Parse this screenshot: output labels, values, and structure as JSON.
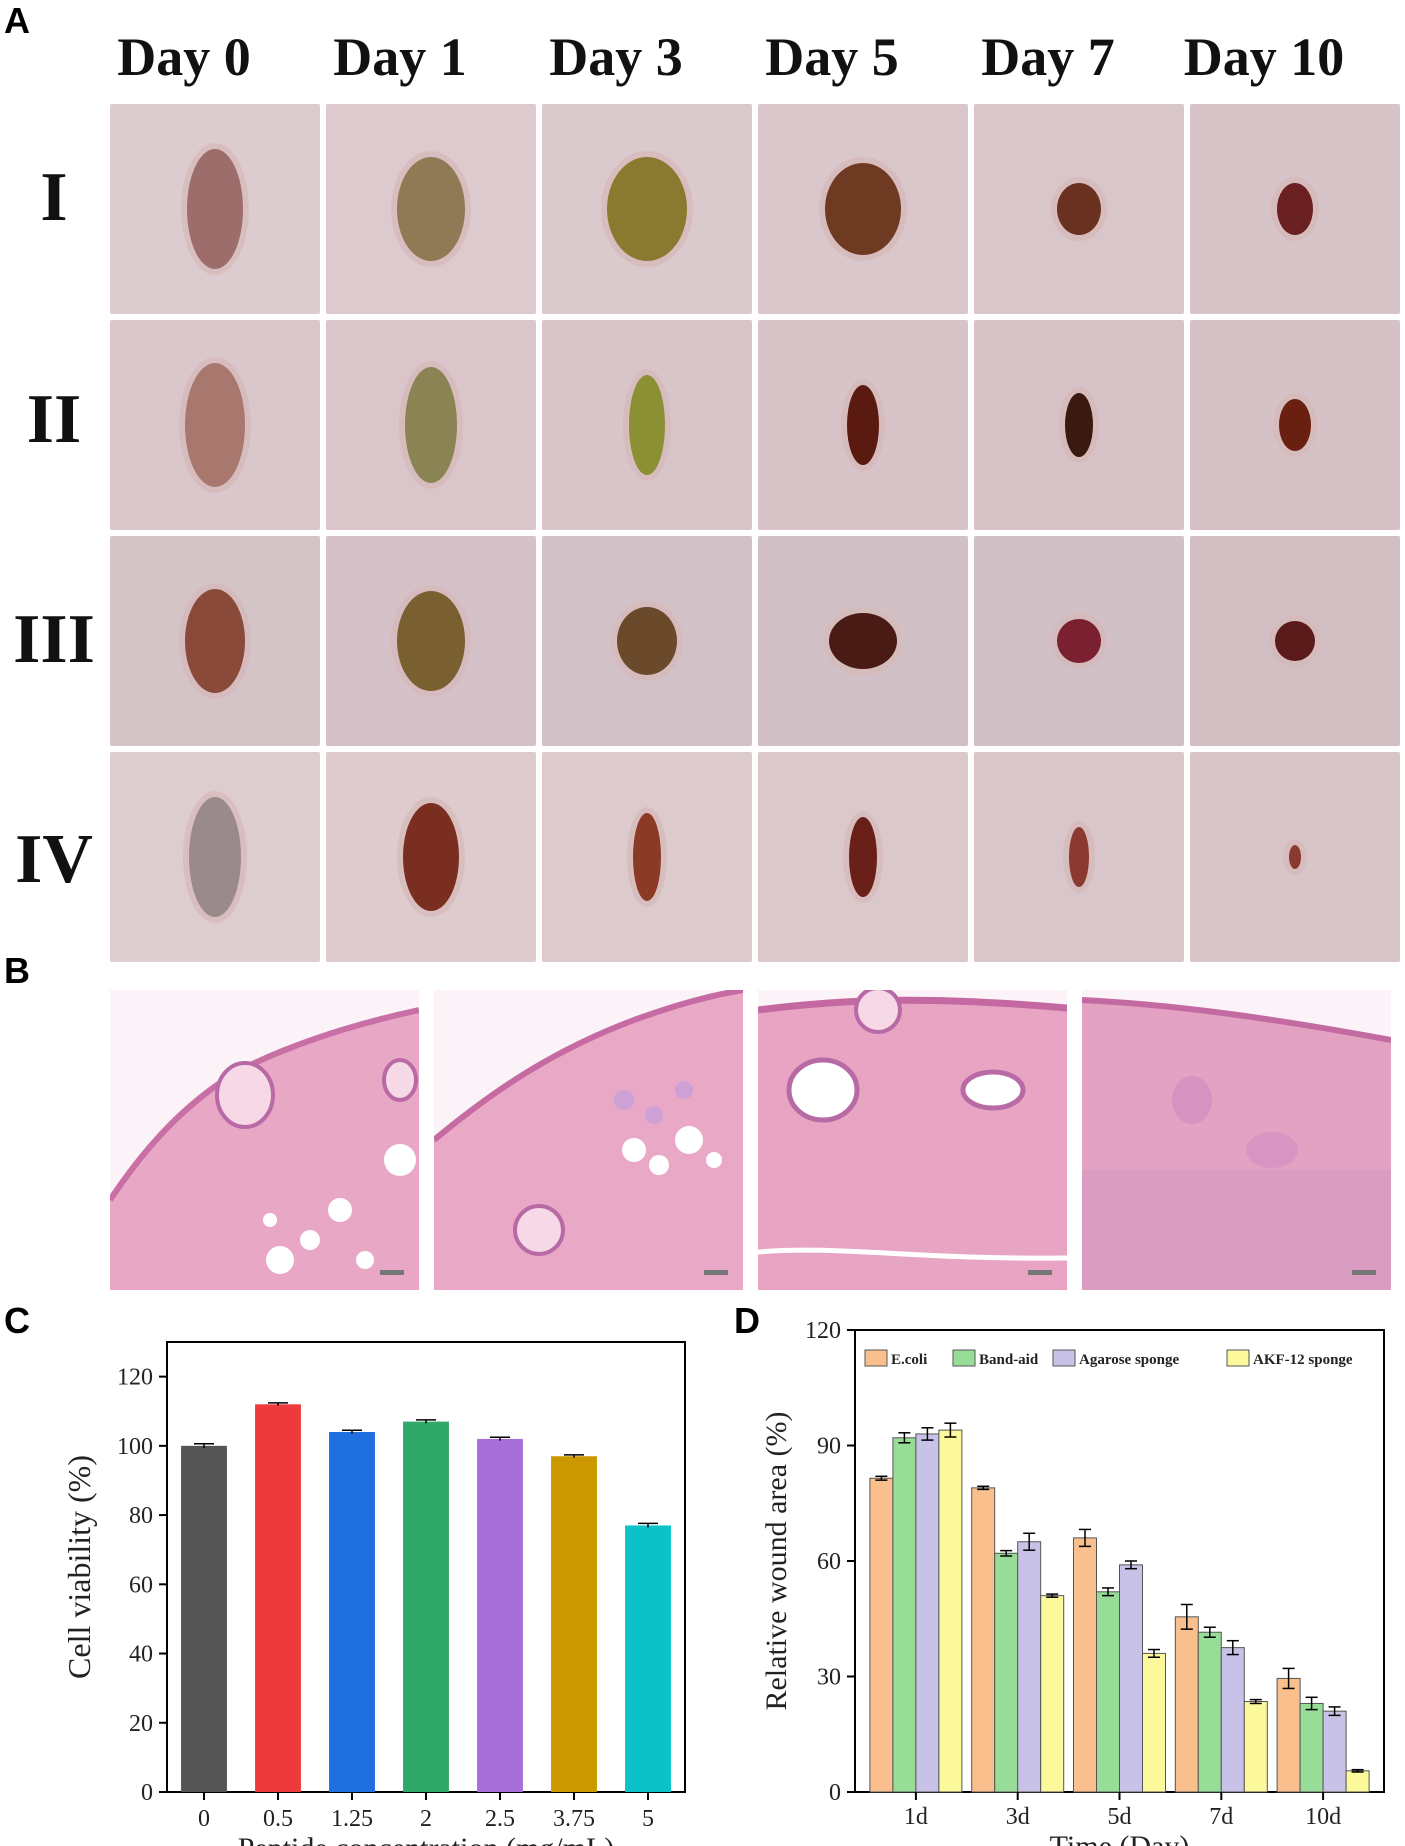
{
  "panel_a": {
    "letter": "A",
    "days": [
      "Day 0",
      "Day 1",
      "Day 3",
      "Day 5",
      "Day 7",
      "Day 10"
    ],
    "groups": [
      "I",
      "II",
      "III",
      "IV"
    ]
  },
  "panel_b": {
    "letter": "B"
  },
  "panel_c": {
    "letter": "C"
  },
  "panel_d": {
    "letter": "D"
  },
  "chart_data": [
    {
      "type": "bar",
      "panel": "C",
      "categories": [
        "0",
        "0.5",
        "1.25",
        "2",
        "2.5",
        "3.75",
        "5"
      ],
      "values": [
        100,
        112,
        104,
        107,
        102,
        97,
        77
      ],
      "errors": [
        0.6,
        0.4,
        0.5,
        0.5,
        0.5,
        0.4,
        0.6
      ],
      "colors": [
        "#555555",
        "#ee3a3d",
        "#1f6fe0",
        "#2fa86a",
        "#a86fdb",
        "#cc9800",
        "#0bc2c8"
      ],
      "xlabel": "Peptide concentration (mg/mL)",
      "ylabel": "Cell viability (%)",
      "ylim": [
        0,
        130
      ],
      "yticks": [
        0,
        20,
        40,
        60,
        80,
        100,
        120
      ],
      "grid": false
    },
    {
      "type": "bar",
      "panel": "D",
      "categories": [
        "1d",
        "3d",
        "5d",
        "7d",
        "10d"
      ],
      "series": [
        {
          "name": "E.coli",
          "color": "#f9bf8c",
          "values": [
            81.5,
            79,
            66,
            45.5,
            29.5
          ],
          "errors": [
            0.5,
            0.4,
            2.2,
            3.2,
            2.6
          ]
        },
        {
          "name": "Band-aid",
          "color": "#97dc97",
          "values": [
            92,
            62,
            52,
            41.5,
            23
          ],
          "errors": [
            1.3,
            0.7,
            1.0,
            1.3,
            1.6
          ]
        },
        {
          "name": "Agarose sponge",
          "color": "#c9c2e8",
          "values": [
            93,
            65,
            59,
            37.5,
            21
          ],
          "errors": [
            1.6,
            2.2,
            1.0,
            1.8,
            1.1
          ]
        },
        {
          "name": "AKF-12 sponge",
          "color": "#fbf99c",
          "values": [
            94,
            51,
            36,
            23.5,
            5.5
          ],
          "errors": [
            1.8,
            0.4,
            1.0,
            0.5,
            0.3
          ]
        }
      ],
      "xlabel": "Time (Day)",
      "ylabel": "Relative wound area (%)",
      "ylim": [
        0,
        120
      ],
      "yticks": [
        0,
        30,
        60,
        90,
        120
      ],
      "legend": "top",
      "grid": false
    }
  ]
}
